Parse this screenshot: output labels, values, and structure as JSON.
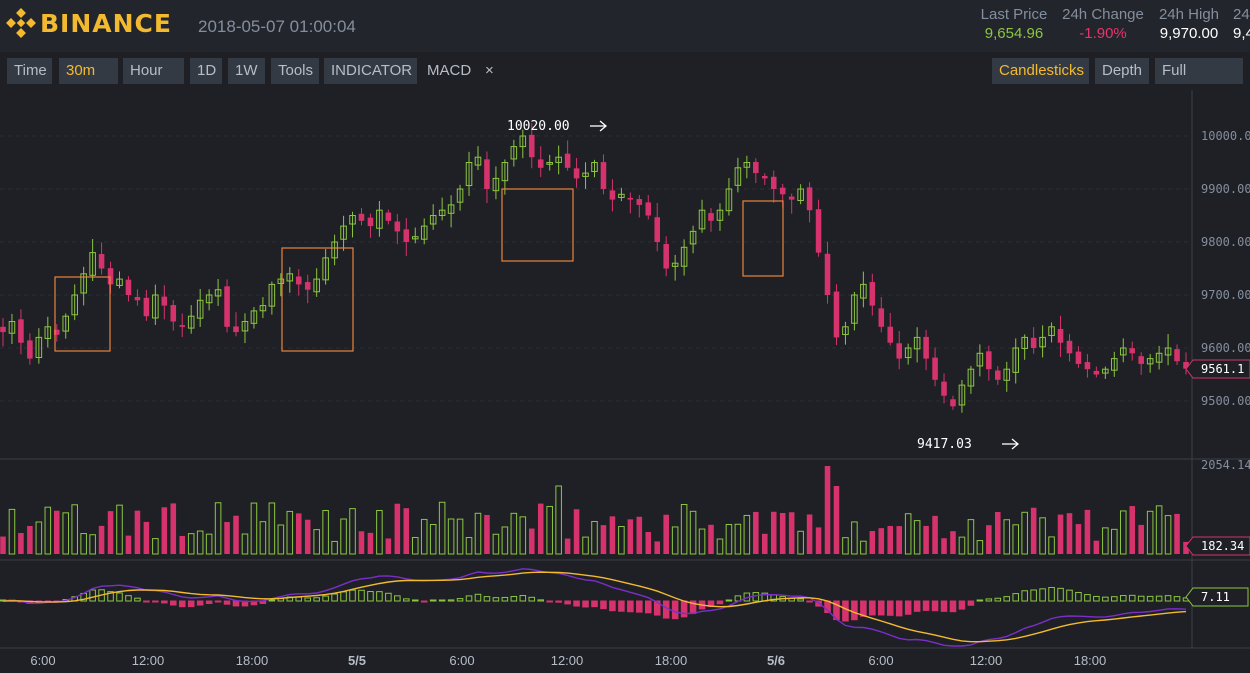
{
  "brand": {
    "name": "BINANCE"
  },
  "header": {
    "datetime": "2018-05-07 01:00:04",
    "last_price_label": "Last Price",
    "last_price": "9,654.96",
    "change_label": "24h Change",
    "change": "-1.90%",
    "high_label": "24h High",
    "high": "9,970.00",
    "clipped_label": "24",
    "clipped_value": "9,4"
  },
  "toolbar": {
    "time": "Time",
    "interval": "30m",
    "hour": "Hour",
    "d1": "1D",
    "w1": "1W",
    "tools": "Tools",
    "indicator": "INDICATOR",
    "macd": "MACD",
    "close": "×",
    "candlesticks": "Candlesticks",
    "depth": "Depth",
    "fullscreen": "Full Screen"
  },
  "colors": {
    "up": "#8cc63f",
    "down": "#d6336c",
    "gold": "#f3ba2f",
    "highlight_box": "#e8843c",
    "dif_line": "#f3ba2f",
    "dea_line": "#7b2fc9"
  },
  "chart_data": {
    "type": "candlestick",
    "y_axis_labels": [
      "10000.00",
      "9900.00",
      "9800.00",
      "9700.00",
      "9600.00",
      "9500.00"
    ],
    "price_range": [
      9375,
      10080
    ],
    "current_price_label": "9561.1",
    "high_annotation": "10020.00",
    "low_annotation": "9417.03",
    "volume_axis_label": "2054.14",
    "volume_current_label": "182.34",
    "macd_current_label": "7.11",
    "x_tick_labels": [
      "6:00",
      "12:00",
      "18:00",
      "5/5",
      "6:00",
      "12:00",
      "18:00",
      "5/6",
      "6:00",
      "12:00",
      "18:00"
    ],
    "close_prices": [
      9630,
      9650,
      9610,
      9580,
      9620,
      9640,
      9625,
      9660,
      9700,
      9740,
      9780,
      9750,
      9720,
      9730,
      9700,
      9690,
      9660,
      9700,
      9680,
      9650,
      9640,
      9660,
      9690,
      9700,
      9710,
      9640,
      9630,
      9650,
      9670,
      9680,
      9720,
      9730,
      9740,
      9720,
      9710,
      9730,
      9770,
      9800,
      9830,
      9850,
      9840,
      9830,
      9860,
      9840,
      9820,
      9800,
      9810,
      9830,
      9850,
      9860,
      9870,
      9900,
      9950,
      9960,
      9900,
      9920,
      9950,
      9980,
      10000,
      9960,
      9940,
      9950,
      9960,
      9940,
      9920,
      9930,
      9950,
      9900,
      9880,
      9890,
      9880,
      9870,
      9850,
      9800,
      9750,
      9760,
      9790,
      9820,
      9860,
      9840,
      9860,
      9900,
      9940,
      9950,
      9930,
      9920,
      9900,
      9890,
      9880,
      9900,
      9860,
      9780,
      9700,
      9620,
      9640,
      9700,
      9720,
      9680,
      9640,
      9610,
      9580,
      9600,
      9620,
      9580,
      9540,
      9510,
      9490,
      9530,
      9560,
      9590,
      9560,
      9540,
      9560,
      9600,
      9620,
      9600,
      9620,
      9640,
      9610,
      9590,
      9570,
      9560,
      9550,
      9560,
      9580,
      9600,
      9590,
      9570,
      9580,
      9590,
      9600,
      9575,
      9561
    ],
    "macd_histogram_range": [
      -22,
      10
    ]
  }
}
